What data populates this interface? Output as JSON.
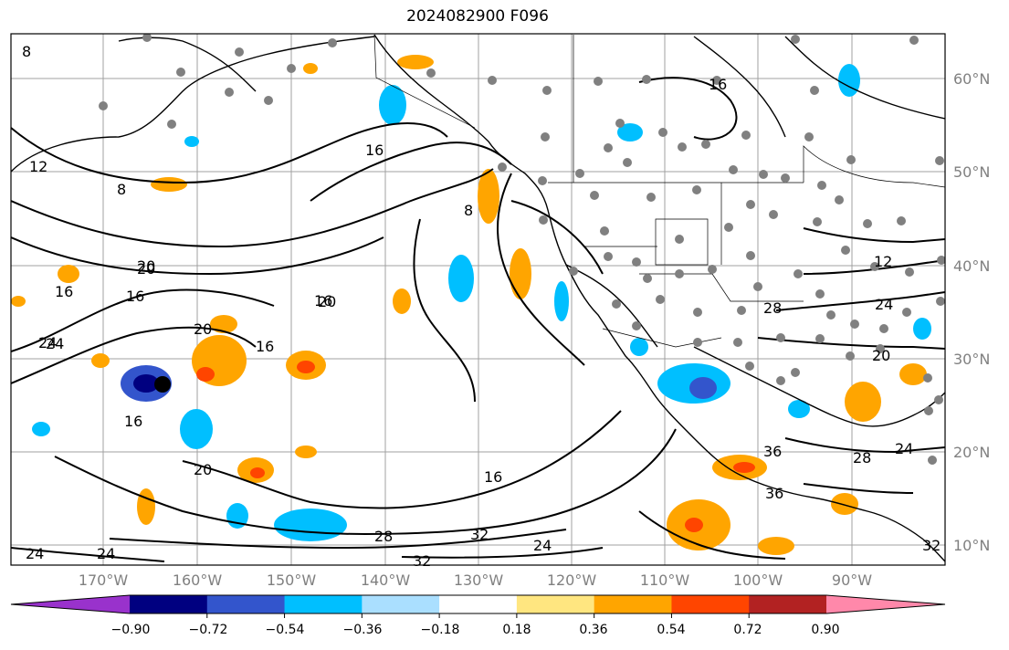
{
  "title": "2024082900 F096",
  "lat_labels": [
    "60°N",
    "50°N",
    "40°N",
    "30°N",
    "20°N",
    "10°N"
  ],
  "lon_labels": [
    "170°W",
    "160°W",
    "150°W",
    "140°W",
    "130°W",
    "120°W",
    "110°W",
    "100°W",
    "90°W"
  ],
  "contour_labels": [
    "8",
    "12",
    "8",
    "16",
    "20",
    "16",
    "20",
    "24",
    "16",
    "20",
    "16",
    "20",
    "16",
    "8",
    "16",
    "16",
    "24",
    "28",
    "32",
    "32",
    "24",
    "24",
    "24",
    "20",
    "28",
    "24",
    "28",
    "36",
    "36",
    "32",
    "12",
    "16",
    "20",
    "24"
  ],
  "colorbar": {
    "tick_labels": [
      "−0.90",
      "−0.72",
      "−0.54",
      "−0.36",
      "−0.18",
      "0.18",
      "0.36",
      "0.54",
      "0.72",
      "0.90"
    ],
    "colors": [
      "#9932cc",
      "#000080",
      "#3355cc",
      "#00bfff",
      "#aadfff",
      "#ffffff",
      "#ffe680",
      "#ffa500",
      "#ff4500",
      "#b22222",
      "#ff88aa"
    ]
  }
}
